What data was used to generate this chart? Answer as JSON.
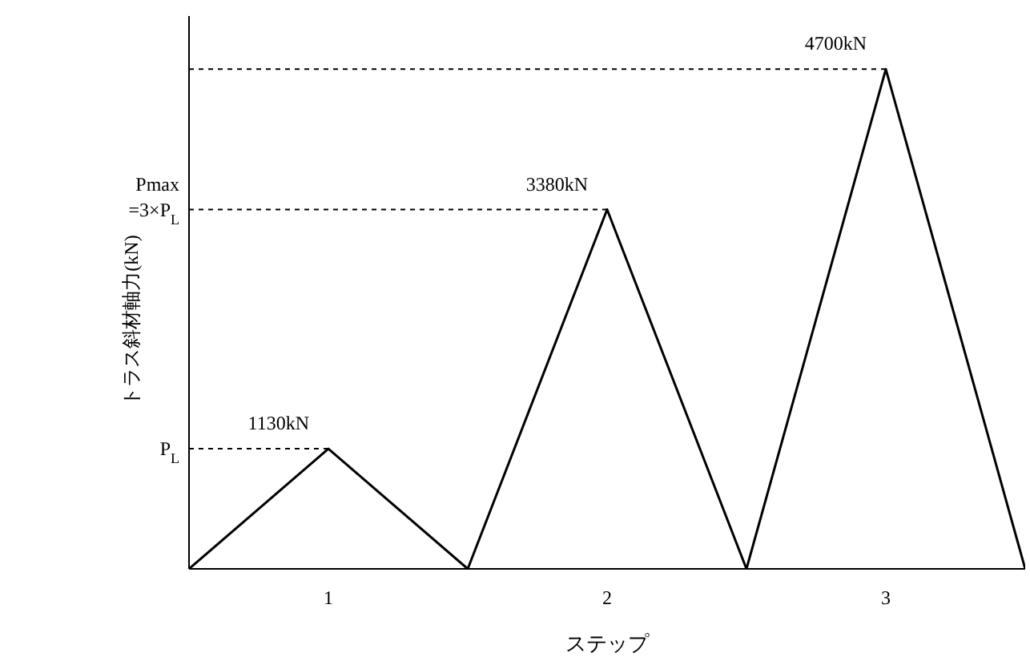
{
  "chart_data": {
    "type": "line",
    "xlabel": "ステップ",
    "ylabel": "トラス斜材軸力(kN)",
    "categories": [
      null,
      "1",
      null,
      "2",
      null,
      "3",
      null
    ],
    "values": [
      0,
      1130,
      0,
      3380,
      0,
      4700,
      0
    ],
    "value_labels": [
      null,
      "1130kN",
      null,
      "3380kN",
      null,
      "4700kN",
      null
    ],
    "color": "#000000",
    "ylim": [
      0,
      5200
    ],
    "ref_lines": [
      {
        "axis": "y",
        "value": 1130,
        "label": "P$_{L}$",
        "line_style": "dashed"
      },
      {
        "axis": "y",
        "value": 3380,
        "line_style": "dashed"
      },
      {
        "axis": "y",
        "value": 4700,
        "line_style": "dashed"
      }
    ],
    "annotations": [
      "Pmax\n=3×P$_{L}$"
    ],
    "tick_labels": "x",
    "grid": false,
    "legend": false,
    "marker": "none",
    "line_style": "solid"
  }
}
